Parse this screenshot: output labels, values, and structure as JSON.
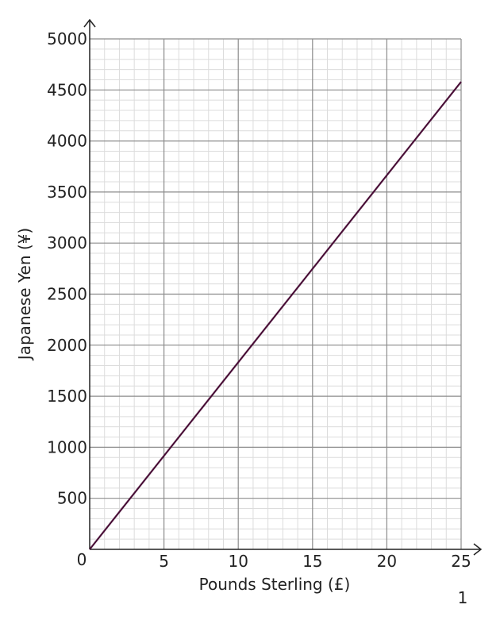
{
  "chart_data": {
    "type": "line",
    "xlabel": "Pounds Sterling (£)",
    "ylabel": "Japanese Yen (¥)",
    "xlim": [
      0,
      25
    ],
    "ylim": [
      0,
      5000
    ],
    "x_ticks": [
      5,
      10,
      15,
      20,
      25
    ],
    "y_ticks": [
      500,
      1000,
      1500,
      2000,
      2500,
      3000,
      3500,
      4000,
      4500,
      5000
    ],
    "origin_label": "0",
    "grid": true,
    "minor_grid": true,
    "series": [
      {
        "values": [
          [
            0,
            0
          ],
          [
            25,
            4580
          ]
        ],
        "color": "#4a1038"
      }
    ]
  },
  "page_number": "1",
  "colors": {
    "major_grid": "#8c8c8c",
    "minor_grid": "#dcdcdc",
    "axis": "#222222",
    "line": "#4a1038"
  }
}
